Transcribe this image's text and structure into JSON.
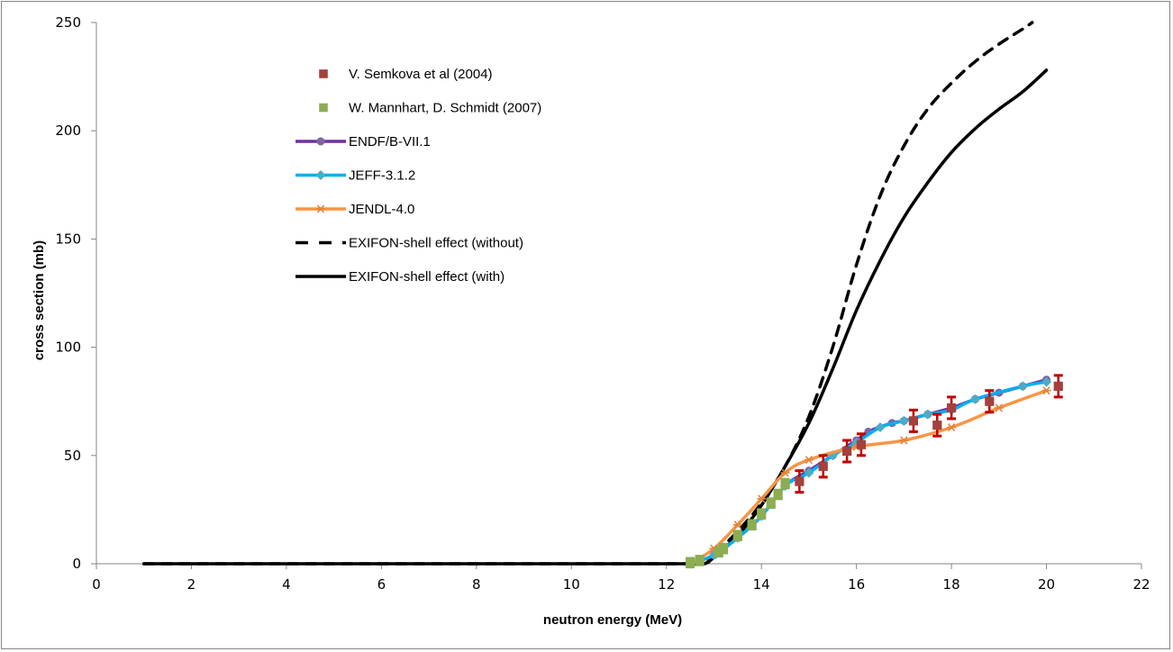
{
  "chart_data": {
    "type": "scatter",
    "title": "",
    "xlabel": "neutron energy (MeV)",
    "ylabel": "cross section (mb)",
    "xlim": [
      0,
      22
    ],
    "ylim": [
      0,
      250
    ],
    "xticks": [
      0,
      2,
      4,
      6,
      8,
      10,
      12,
      14,
      16,
      18,
      20,
      22
    ],
    "yticks": [
      0,
      50,
      100,
      150,
      200,
      250
    ],
    "grid": false,
    "legend_position": "top-left-inside",
    "series": [
      {
        "name": "V. Semkova et al (2004)",
        "kind": "markers",
        "marker": "square",
        "color": "#A5403D",
        "error_color": "#C00000",
        "x": [
          14.8,
          15.3,
          15.8,
          16.1,
          17.2,
          17.7,
          18.0,
          18.8,
          20.25
        ],
        "y": [
          38,
          45,
          52,
          55,
          66,
          64,
          72,
          75,
          82
        ],
        "yerr": [
          5,
          5,
          5,
          5,
          5,
          5,
          5,
          5,
          5
        ]
      },
      {
        "name": "W. Mannhart, D. Schmidt (2007)",
        "kind": "markers",
        "marker": "square",
        "color": "#8CAD52",
        "x": [
          12.5,
          12.7,
          13.1,
          13.2,
          13.5,
          13.8,
          14.0,
          14.2,
          14.35,
          14.5
        ],
        "y": [
          0.5,
          1.5,
          5.5,
          7,
          13,
          18,
          23,
          28,
          32,
          37
        ],
        "yerr": [
          2,
          2,
          2,
          2,
          2,
          2,
          2,
          2,
          2,
          2
        ]
      },
      {
        "name": "ENDF/B-VII.1",
        "kind": "line-markers",
        "marker": "circle",
        "color": "#7030A0",
        "marker_color": "#8064A2",
        "x": [
          12.5,
          13.0,
          13.5,
          14.0,
          14.5,
          15.0,
          15.5,
          16.0,
          16.25,
          16.75,
          17.0,
          17.5,
          18.0,
          18.5,
          19.0,
          19.5,
          20.0
        ],
        "y": [
          0,
          4,
          12,
          22,
          36,
          43,
          50,
          57,
          61,
          65,
          66,
          69,
          72,
          76,
          79,
          82,
          85
        ]
      },
      {
        "name": "JEFF-3.1.2",
        "kind": "line-markers",
        "marker": "diamond",
        "color": "#00B0F0",
        "marker_color": "#4BACC6",
        "x": [
          12.5,
          13.0,
          13.5,
          14.0,
          14.5,
          15.0,
          15.5,
          16.0,
          16.5,
          17.0,
          17.5,
          18.0,
          18.5,
          19.5,
          20.0
        ],
        "y": [
          0,
          4,
          12,
          22,
          36,
          42,
          50,
          56,
          63,
          66,
          69,
          71,
          76,
          82,
          84
        ]
      },
      {
        "name": "JENDL-4.0",
        "kind": "line-markers",
        "marker": "asterisk",
        "color": "#F79646",
        "marker_color": "#E4843A",
        "x": [
          12.5,
          13.0,
          13.5,
          14.0,
          14.5,
          15.0,
          16.0,
          17.0,
          18.0,
          19.0,
          20.0
        ],
        "y": [
          0,
          7,
          18,
          30,
          42,
          48,
          54,
          57,
          63,
          72,
          80
        ]
      },
      {
        "name": "EXIFON-shell effect (without)",
        "kind": "line",
        "dash": "dashed",
        "color": "#000000",
        "x": [
          1,
          2,
          4,
          6,
          8,
          10,
          11,
          12,
          12.5,
          12.8,
          13.0,
          13.5,
          14.0,
          14.5,
          15.0,
          15.5,
          16.0,
          16.5,
          17.0,
          17.5,
          18.0,
          18.5,
          19.0,
          19.5,
          19.7
        ],
        "y": [
          0,
          0,
          0,
          0,
          0,
          0,
          0,
          0,
          0,
          0,
          4,
          15,
          28,
          45,
          68,
          100,
          138,
          170,
          193,
          210,
          222,
          232,
          240,
          247,
          250
        ]
      },
      {
        "name": "EXIFON-shell effect (with)",
        "kind": "line",
        "dash": "solid",
        "color": "#000000",
        "x": [
          1,
          2,
          4,
          6,
          8,
          10,
          11,
          12,
          12.5,
          12.8,
          13.0,
          13.5,
          14.0,
          14.5,
          15.0,
          15.5,
          16.0,
          16.5,
          17.0,
          17.5,
          18.0,
          18.5,
          19.0,
          19.5,
          20.0
        ],
        "y": [
          0,
          0,
          0,
          0,
          0,
          0,
          0,
          0,
          0,
          0,
          3,
          13,
          27,
          45,
          65,
          90,
          117,
          140,
          160,
          176,
          190,
          201,
          210,
          218,
          228
        ]
      }
    ]
  }
}
